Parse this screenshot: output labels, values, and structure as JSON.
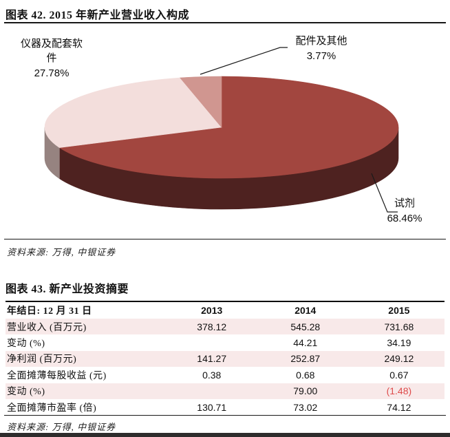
{
  "figure42": {
    "title": "图表 42. 2015 年新产业营业收入构成",
    "source": "资料来源: 万得, 中银证券",
    "chart_data": {
      "type": "pie",
      "style": "3d",
      "labels": [
        "试剂",
        "仪器及配套软件",
        "配件及其他"
      ],
      "values": [
        68.46,
        27.78,
        3.77
      ],
      "display_pcts": [
        "68.46%",
        "27.78%",
        "3.77%"
      ],
      "colors": [
        "#A2463F",
        "#F3DEDC",
        "#D09690"
      ],
      "side_colors": [
        "#4E2220",
        "#968380",
        "#B08280"
      ],
      "start_angle_deg": 0,
      "direction": "clockwise",
      "legend": "none",
      "leader_line_color": "#1a1a1a"
    }
  },
  "figure43": {
    "title": "图表 43. 新产业投资摘要",
    "source": "资料来源: 万得, 中银证券",
    "chart_data": {
      "type": "table",
      "header": [
        "年结日: 12 月 31 日",
        "2013",
        "2014",
        "2015"
      ],
      "rows": [
        {
          "label": "营业收入 (百万元)",
          "values": [
            "378.12",
            "545.28",
            "731.68"
          ]
        },
        {
          "label": "变动 (%)",
          "values": [
            "",
            "44.21",
            "34.19"
          ]
        },
        {
          "label": "净利润 (百万元)",
          "values": [
            "141.27",
            "252.87",
            "249.12"
          ]
        },
        {
          "label": "全面摊薄每股收益 (元)",
          "values": [
            "0.38",
            "0.68",
            "0.67"
          ]
        },
        {
          "label": "变动 (%)",
          "values": [
            "",
            "79.00",
            "(1.48)"
          ]
        },
        {
          "label": "全面摊薄市盈率 (倍)",
          "values": [
            "130.71",
            "73.02",
            "74.12"
          ]
        }
      ],
      "stripe_color": "#F8E9E9",
      "negative_color": "#DE4B4B"
    }
  }
}
